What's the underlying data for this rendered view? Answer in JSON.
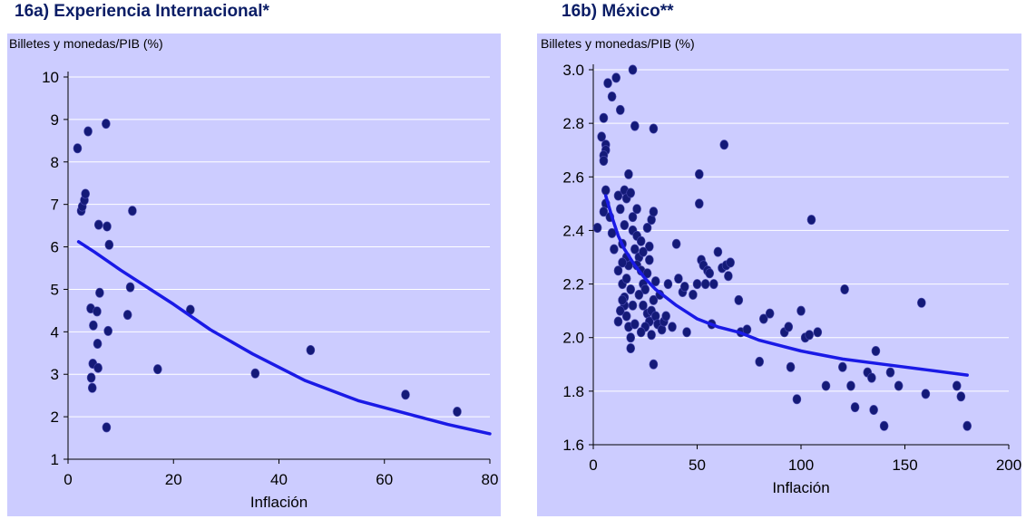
{
  "chart_data": [
    {
      "type": "scatter",
      "title": "16a) Experiencia Internacional*",
      "ylabel": "Billetes y monedas/PIB (%)",
      "xlabel": "Inflación",
      "xlim": [
        0,
        80
      ],
      "ylim": [
        1,
        10
      ],
      "xticks": [
        0,
        20,
        40,
        60,
        80
      ],
      "yticks": [
        1,
        2,
        3,
        4,
        5,
        6,
        7,
        8,
        9,
        10
      ],
      "grid": "horizontal",
      "colors": {
        "background": "#ccccff",
        "points": "#141a78",
        "trend": "#1a1ae6",
        "axis": "#000000"
      },
      "points": [
        [
          1.8,
          8.32
        ],
        [
          2.5,
          6.85
        ],
        [
          2.7,
          6.95
        ],
        [
          3.1,
          7.1
        ],
        [
          3.3,
          7.25
        ],
        [
          3.8,
          8.72
        ],
        [
          4.3,
          4.55
        ],
        [
          4.4,
          2.92
        ],
        [
          4.6,
          2.68
        ],
        [
          4.7,
          3.25
        ],
        [
          4.8,
          4.15
        ],
        [
          5.5,
          4.48
        ],
        [
          5.6,
          3.72
        ],
        [
          5.7,
          3.15
        ],
        [
          5.8,
          6.52
        ],
        [
          6.0,
          4.92
        ],
        [
          7.2,
          8.9
        ],
        [
          7.3,
          1.75
        ],
        [
          7.4,
          6.48
        ],
        [
          7.6,
          4.02
        ],
        [
          7.8,
          6.05
        ],
        [
          11.3,
          4.4
        ],
        [
          11.8,
          5.05
        ],
        [
          12.2,
          6.85
        ],
        [
          17.0,
          3.12
        ],
        [
          23.2,
          4.52
        ],
        [
          35.5,
          3.02
        ],
        [
          46.0,
          3.57
        ],
        [
          64.0,
          2.52
        ],
        [
          73.8,
          2.12
        ]
      ],
      "trend": [
        [
          2,
          6.12
        ],
        [
          5,
          5.88
        ],
        [
          10,
          5.45
        ],
        [
          15,
          5.05
        ],
        [
          20,
          4.65
        ],
        [
          27,
          4.05
        ],
        [
          35,
          3.48
        ],
        [
          45,
          2.85
        ],
        [
          55,
          2.38
        ],
        [
          65,
          2.05
        ],
        [
          72,
          1.82
        ],
        [
          80,
          1.6
        ]
      ]
    },
    {
      "type": "scatter",
      "title": "16b) México**",
      "ylabel": "Billetes y monedas/PIB (%)",
      "xlabel": "Inflación",
      "xlim": [
        0,
        200
      ],
      "ylim": [
        1.6,
        3.0
      ],
      "xticks": [
        0,
        50,
        100,
        150,
        200
      ],
      "yticks": [
        1.6,
        1.8,
        2.0,
        2.2,
        2.4,
        2.6,
        2.8,
        3.0
      ],
      "ytick_labels": [
        "1.6",
        "1.8",
        "2.0",
        "2.2",
        "2.4",
        "2.6",
        "2.8",
        "3.0"
      ],
      "grid": "horizontal",
      "colors": {
        "background": "#ccccff",
        "points": "#141a78",
        "trend": "#1a1ae6",
        "axis": "#000000"
      },
      "points": [
        [
          5,
          2.82
        ],
        [
          6,
          2.72
        ],
        [
          6,
          2.7
        ],
        [
          5,
          2.68
        ],
        [
          5,
          2.66
        ],
        [
          6,
          2.55
        ],
        [
          6,
          2.5
        ],
        [
          5,
          2.47
        ],
        [
          7,
          2.95
        ],
        [
          9,
          2.9
        ],
        [
          11,
          2.97
        ],
        [
          13,
          2.85
        ],
        [
          19,
          3.0
        ],
        [
          20,
          2.79
        ],
        [
          29,
          2.78
        ],
        [
          8,
          2.45
        ],
        [
          9,
          2.39
        ],
        [
          10,
          2.33
        ],
        [
          12,
          2.25
        ],
        [
          14,
          2.2
        ],
        [
          15,
          2.15
        ],
        [
          15,
          2.12
        ],
        [
          16,
          2.08
        ],
        [
          17,
          2.04
        ],
        [
          18,
          2.0
        ],
        [
          18,
          1.96
        ],
        [
          17,
          2.27
        ],
        [
          16,
          2.3
        ],
        [
          14,
          2.35
        ],
        [
          13,
          2.48
        ],
        [
          12,
          2.53
        ],
        [
          15,
          2.55
        ],
        [
          16,
          2.52
        ],
        [
          18,
          2.54
        ],
        [
          19,
          2.45
        ],
        [
          17,
          2.61
        ],
        [
          19,
          2.4
        ],
        [
          21,
          2.38
        ],
        [
          20,
          2.33
        ],
        [
          22,
          2.3
        ],
        [
          21,
          2.27
        ],
        [
          23,
          2.25
        ],
        [
          24,
          2.2
        ],
        [
          25,
          2.18
        ],
        [
          22,
          2.16
        ],
        [
          24,
          2.12
        ],
        [
          26,
          2.09
        ],
        [
          27,
          2.06
        ],
        [
          25,
          2.04
        ],
        [
          28,
          2.1
        ],
        [
          29,
          2.14
        ],
        [
          30,
          2.08
        ],
        [
          31,
          2.05
        ],
        [
          33,
          2.03
        ],
        [
          34,
          2.06
        ],
        [
          30,
          2.21
        ],
        [
          28,
          2.44
        ],
        [
          29,
          2.47
        ],
        [
          26,
          2.41
        ],
        [
          27,
          2.34
        ],
        [
          23,
          2.02
        ],
        [
          20,
          2.05
        ],
        [
          19,
          2.12
        ],
        [
          18,
          2.18
        ],
        [
          16,
          2.22
        ],
        [
          14,
          2.14
        ],
        [
          13,
          2.1
        ],
        [
          12,
          2.06
        ],
        [
          15,
          2.42
        ],
        [
          14,
          2.28
        ],
        [
          21,
          2.48
        ],
        [
          23,
          2.36
        ],
        [
          24,
          2.32
        ],
        [
          26,
          2.24
        ],
        [
          27,
          2.29
        ],
        [
          28,
          2.01
        ],
        [
          29,
          1.9
        ],
        [
          32,
          2.16
        ],
        [
          35,
          2.08
        ],
        [
          36,
          2.2
        ],
        [
          38,
          2.04
        ],
        [
          40,
          2.35
        ],
        [
          41,
          2.22
        ],
        [
          43,
          2.17
        ],
        [
          44,
          2.19
        ],
        [
          45,
          2.02
        ],
        [
          48,
          2.16
        ],
        [
          50,
          2.2
        ],
        [
          51,
          2.5
        ],
        [
          52,
          2.29
        ],
        [
          53,
          2.27
        ],
        [
          54,
          2.2
        ],
        [
          55,
          2.25
        ],
        [
          56,
          2.24
        ],
        [
          57,
          2.05
        ],
        [
          58,
          2.2
        ],
        [
          60,
          2.32
        ],
        [
          62,
          2.26
        ],
        [
          63,
          2.72
        ],
        [
          64,
          2.27
        ],
        [
          65,
          2.23
        ],
        [
          66,
          2.28
        ],
        [
          51,
          2.61
        ],
        [
          70,
          2.14
        ],
        [
          71,
          2.02
        ],
        [
          74,
          2.03
        ],
        [
          80,
          1.91
        ],
        [
          82,
          2.07
        ],
        [
          85,
          2.09
        ],
        [
          92,
          2.02
        ],
        [
          94,
          2.04
        ],
        [
          95,
          1.89
        ],
        [
          98,
          1.77
        ],
        [
          100,
          2.1
        ],
        [
          102,
          2.0
        ],
        [
          104,
          2.01
        ],
        [
          105,
          2.44
        ],
        [
          108,
          2.02
        ],
        [
          112,
          1.82
        ],
        [
          120,
          1.89
        ],
        [
          121,
          2.18
        ],
        [
          124,
          1.82
        ],
        [
          126,
          1.74
        ],
        [
          132,
          1.87
        ],
        [
          134,
          1.85
        ],
        [
          135,
          1.73
        ],
        [
          136,
          1.95
        ],
        [
          140,
          1.67
        ],
        [
          143,
          1.87
        ],
        [
          147,
          1.82
        ],
        [
          158,
          2.13
        ],
        [
          160,
          1.79
        ],
        [
          175,
          1.82
        ],
        [
          177,
          1.78
        ],
        [
          180,
          1.67
        ],
        [
          2,
          2.41
        ],
        [
          4,
          2.75
        ]
      ],
      "trend": [
        [
          6,
          2.53
        ],
        [
          9,
          2.45
        ],
        [
          12,
          2.38
        ],
        [
          15,
          2.33
        ],
        [
          20,
          2.27
        ],
        [
          25,
          2.22
        ],
        [
          30,
          2.18
        ],
        [
          40,
          2.12
        ],
        [
          50,
          2.07
        ],
        [
          60,
          2.04
        ],
        [
          70,
          2.02
        ],
        [
          80,
          1.99
        ],
        [
          100,
          1.95
        ],
        [
          120,
          1.92
        ],
        [
          140,
          1.9
        ],
        [
          160,
          1.88
        ],
        [
          180,
          1.86
        ]
      ]
    }
  ]
}
